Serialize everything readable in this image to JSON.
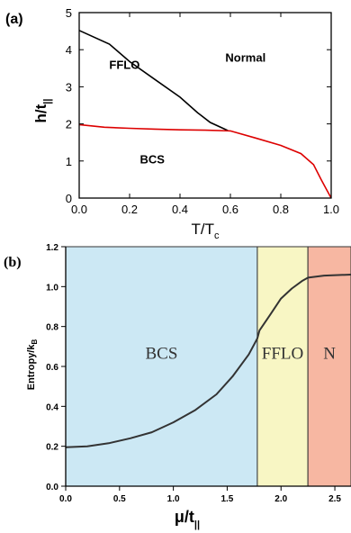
{
  "chart_data": [
    {
      "panel_label": "(a)",
      "type": "line",
      "xlabel": "T/T",
      "xlabel_sub": "c",
      "ylabel": "h/t",
      "ylabel_sub": "||",
      "xlim": [
        0.0,
        1.0
      ],
      "ylim": [
        0,
        5
      ],
      "xticks": [
        "0.0",
        "0.2",
        "0.4",
        "0.6",
        "0.8",
        "1.0"
      ],
      "yticks": [
        "0",
        "1",
        "2",
        "3",
        "4",
        "5"
      ],
      "region_labels": [
        "FFLO",
        "Normal",
        "BCS"
      ],
      "series": [
        {
          "color": "#000000",
          "x": [
            0.0,
            0.12,
            0.2,
            0.3,
            0.4,
            0.47,
            0.52,
            0.59
          ],
          "y": [
            4.52,
            4.15,
            3.68,
            3.2,
            2.72,
            2.3,
            2.04,
            1.82
          ]
        },
        {
          "color": "#dd0000",
          "x": [
            0.0,
            0.1,
            0.2,
            0.3,
            0.4,
            0.5,
            0.6,
            0.7,
            0.8,
            0.88,
            0.93,
            0.96,
            0.98,
            1.0
          ],
          "y": [
            1.98,
            1.91,
            1.88,
            1.86,
            1.84,
            1.83,
            1.81,
            1.62,
            1.42,
            1.2,
            0.9,
            0.5,
            0.25,
            0.0
          ]
        }
      ]
    },
    {
      "panel_label": "(b)",
      "type": "line",
      "xlabel": "μ/t",
      "xlabel_sub": "||",
      "ylabel": "Entropy/k",
      "ylabel_sub": "B",
      "xlim": [
        0.0,
        2.65
      ],
      "ylim": [
        0.0,
        1.2
      ],
      "xticks": [
        "0.0",
        "0.5",
        "1.0",
        "1.5",
        "2.0",
        "2.5"
      ],
      "yticks": [
        "0.0",
        "0.2",
        "0.4",
        "0.6",
        "0.8",
        "1.0",
        "1.2"
      ],
      "regions": [
        {
          "label": "BCS",
          "x_start": 0.0,
          "x_end": 1.78,
          "color": "#cce8f4"
        },
        {
          "label": "FFLO",
          "x_start": 1.78,
          "x_end": 2.25,
          "color": "#f8f6c4"
        },
        {
          "label": "N",
          "x_start": 2.25,
          "x_end": 2.65,
          "color": "#f7b7a2"
        }
      ],
      "series": [
        {
          "color": "#333333",
          "x": [
            0.0,
            0.2,
            0.4,
            0.6,
            0.8,
            1.0,
            1.2,
            1.4,
            1.55,
            1.7,
            1.78,
            1.8,
            1.9,
            2.0,
            2.1,
            2.2,
            2.25,
            2.4,
            2.65
          ],
          "y": [
            0.195,
            0.2,
            0.215,
            0.24,
            0.27,
            0.32,
            0.38,
            0.46,
            0.55,
            0.66,
            0.74,
            0.78,
            0.86,
            0.94,
            0.99,
            1.03,
            1.045,
            1.055,
            1.06
          ]
        }
      ]
    }
  ]
}
